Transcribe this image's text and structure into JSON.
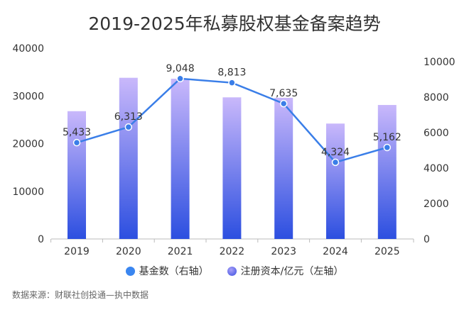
{
  "title": "2019-2025年私募股权基金备案趋势",
  "source": "数据来源：财联社创投通—执中数据",
  "chart_data": {
    "type": "bar+line",
    "title": "2019-2025年私募股权基金备案趋势",
    "categories": [
      "2019",
      "2020",
      "2021",
      "2022",
      "2023",
      "2024",
      "2025"
    ],
    "left_axis": {
      "ylim": [
        0,
        40000
      ],
      "ticks": [
        "0",
        "10000",
        "20000",
        "30000",
        "40000"
      ]
    },
    "right_axis": {
      "ylim": [
        0,
        10000
      ],
      "ticks": [
        "0",
        "2000",
        "4000",
        "6000",
        "8000",
        "10000"
      ]
    },
    "grid": false,
    "legend_placement": "bottom",
    "series": [
      {
        "name": "基金数（右轴）",
        "type": "line",
        "axis": "right",
        "values": [
          5433,
          6313,
          9048,
          8813,
          7635,
          4324,
          5162
        ],
        "labels": [
          "5,433",
          "6,313",
          "9,048",
          "8,813",
          "7,635",
          "4,324",
          "5,162"
        ],
        "color": "#3a7ee8"
      },
      {
        "name": "注册资本/亿元（左轴）",
        "type": "bar",
        "axis": "left",
        "values": [
          26800,
          33800,
          33600,
          29700,
          29600,
          24200,
          28100
        ],
        "color_top": "#c9b8fb",
        "color_bottom": "#2c4fe0"
      }
    ]
  }
}
